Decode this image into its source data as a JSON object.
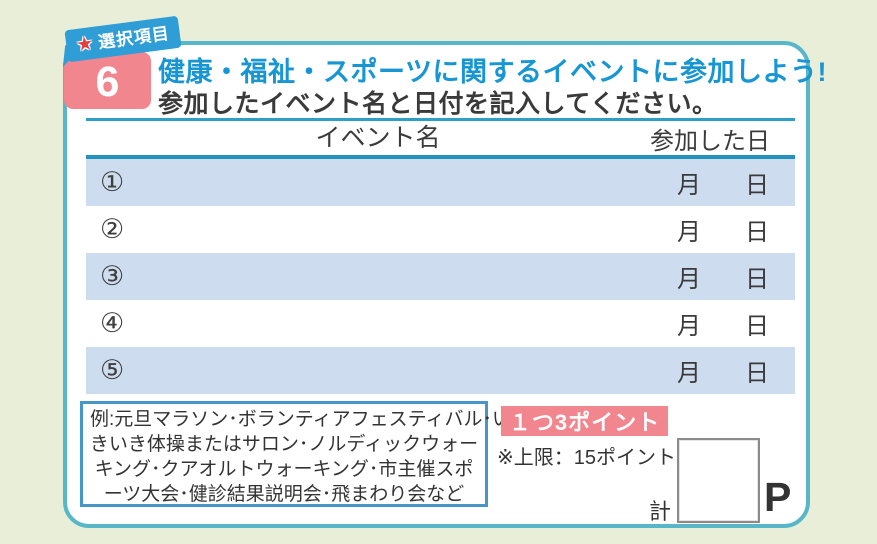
{
  "badge": {
    "tag_label": "選択項目",
    "star": "★",
    "number": "6"
  },
  "title": {
    "line1": "健康・福祉・スポーツに関するイベントに参加しよう!",
    "line2": "参加したイベント名と日付を記入してください。"
  },
  "table": {
    "col_event": "イベント名",
    "col_date": "参加した日",
    "month_label": "月",
    "day_label": "日",
    "rows": [
      {
        "num": "①"
      },
      {
        "num": "②"
      },
      {
        "num": "③"
      },
      {
        "num": "④"
      },
      {
        "num": "⑤"
      }
    ]
  },
  "examples": {
    "lines": [
      "例:元旦マラソン･ボランティアフェスティバル･い",
      "きいき体操またはサロン･ノルディックウォー",
      "キング･クアオルトウォーキング･市主催スポ",
      "ーツ大会･健診結果説明会･飛まわり会など"
    ]
  },
  "points": {
    "per_event": "１つ3ポイント",
    "limit_note": "※上限：15ポイント",
    "total_label": "計",
    "unit": "P"
  },
  "colors": {
    "background": "#e8eed8",
    "card_border": "#57b7c8",
    "title_blue": "#1796d3",
    "tag_blue": "#2f9ed6",
    "star_red": "#e73e3e",
    "pink": "#f1868f",
    "row_blue": "#cddcee",
    "table_line": "#2392bd",
    "example_border": "#4796c8"
  }
}
